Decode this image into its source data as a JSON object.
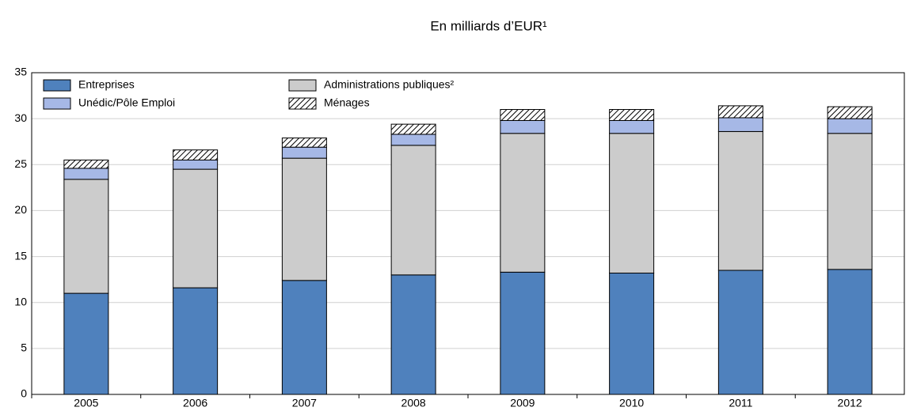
{
  "chart_data": {
    "type": "stacked_bar",
    "title": "En milliards d’EUR¹",
    "categories": [
      "2005",
      "2006",
      "2007",
      "2008",
      "2009",
      "2010",
      "2011",
      "2012"
    ],
    "series": [
      {
        "name": "Entreprises",
        "color": "#4f81bd",
        "values": [
          11.0,
          11.6,
          12.4,
          13.0,
          13.3,
          13.2,
          13.5,
          13.6
        ]
      },
      {
        "name": "Administrations publiques²",
        "color": "#cccccc",
        "values": [
          12.4,
          12.9,
          13.3,
          14.1,
          15.1,
          15.2,
          15.1,
          14.8
        ]
      },
      {
        "name": "Unédic/Pôle Emploi",
        "color": "#a6b8e6",
        "values": [
          1.2,
          1.0,
          1.2,
          1.2,
          1.4,
          1.4,
          1.5,
          1.6
        ]
      },
      {
        "name": "Ménages",
        "color": "#000000",
        "pattern": "hatch",
        "values": [
          0.9,
          1.1,
          1.0,
          1.1,
          1.2,
          1.2,
          1.3,
          1.3
        ]
      }
    ],
    "ylim": [
      0,
      35
    ],
    "yticks": [
      0,
      5,
      10,
      15,
      20,
      25,
      30,
      35
    ],
    "grid": true
  }
}
